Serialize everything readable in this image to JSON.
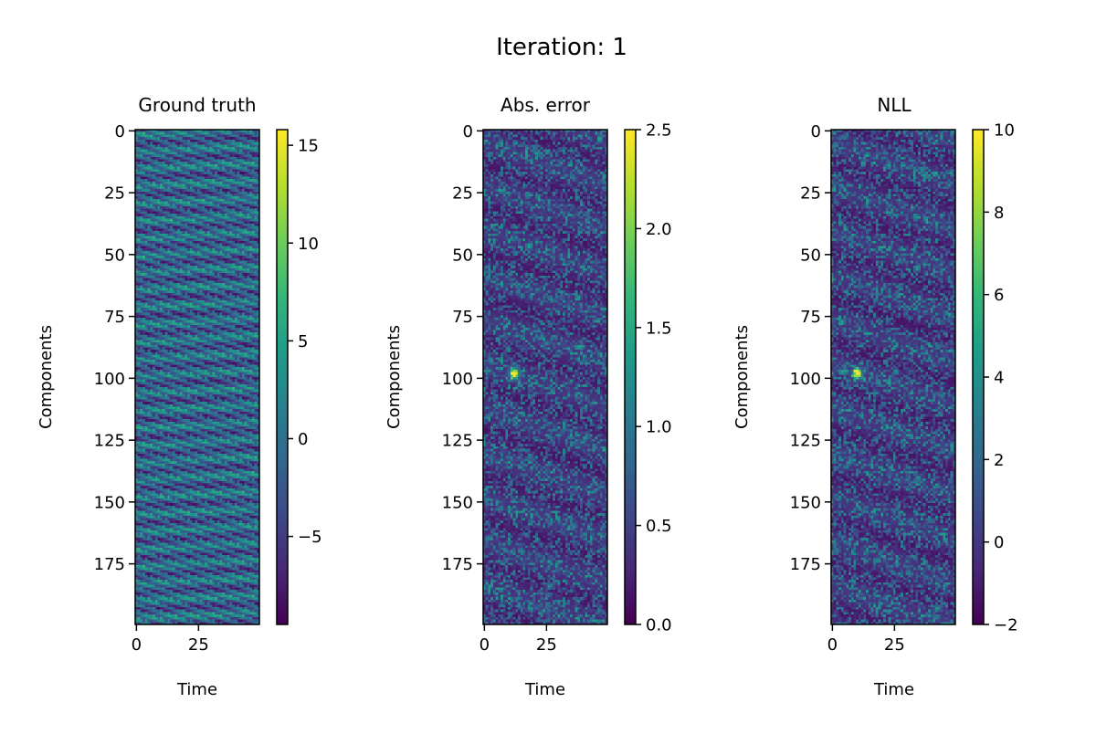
{
  "suptitle": "Iteration: 1",
  "colormap": "viridis",
  "viridis_stops": [
    "#440154",
    "#482878",
    "#3e4989",
    "#31688e",
    "#26828e",
    "#1f9e89",
    "#35b779",
    "#6ece58",
    "#b5de2b",
    "#fde725"
  ],
  "chart_data": [
    {
      "type": "heatmap",
      "title": "Ground truth",
      "xlabel": "Time",
      "ylabel": "Components",
      "x_range": [
        0,
        49
      ],
      "y_range": [
        0,
        199
      ],
      "x_ticks": [
        "0",
        "25"
      ],
      "y_ticks": [
        "0",
        "25",
        "50",
        "75",
        "100",
        "125",
        "150",
        "175"
      ],
      "colorbar": {
        "min": -9.5,
        "max": 15.8,
        "ticks": [
          "15",
          "10",
          "5",
          "0",
          "−5"
        ],
        "tick_values": [
          15,
          10,
          5,
          0,
          -5
        ]
      },
      "pattern": "diagonal-bands"
    },
    {
      "type": "heatmap",
      "title": "Abs. error",
      "xlabel": "Time",
      "ylabel": "Components",
      "x_range": [
        0,
        49
      ],
      "y_range": [
        0,
        199
      ],
      "x_ticks": [
        "0",
        "25"
      ],
      "y_ticks": [
        "0",
        "25",
        "50",
        "75",
        "100",
        "125",
        "150",
        "175"
      ],
      "colorbar": {
        "min": 0.0,
        "max": 2.5,
        "ticks": [
          "2.5",
          "2.0",
          "1.5",
          "1.0",
          "0.5",
          "0.0"
        ],
        "tick_values": [
          2.5,
          2.0,
          1.5,
          1.0,
          0.5,
          0.0
        ]
      },
      "pattern": "noise",
      "hotspot": {
        "x": 12,
        "y": 98,
        "value": 2.5
      }
    },
    {
      "type": "heatmap",
      "title": "NLL",
      "xlabel": "Time",
      "ylabel": "Components",
      "x_range": [
        0,
        49
      ],
      "y_range": [
        0,
        199
      ],
      "x_ticks": [
        "0",
        "25"
      ],
      "y_ticks": [
        "0",
        "25",
        "50",
        "75",
        "100",
        "125",
        "150",
        "175"
      ],
      "colorbar": {
        "min": -2,
        "max": 10,
        "ticks": [
          "10",
          "8",
          "6",
          "4",
          "2",
          "0",
          "−2"
        ],
        "tick_values": [
          10,
          8,
          6,
          4,
          2,
          0,
          -2
        ]
      },
      "pattern": "noise",
      "hotspot": {
        "x": 10,
        "y": 98,
        "value": 10
      }
    }
  ]
}
